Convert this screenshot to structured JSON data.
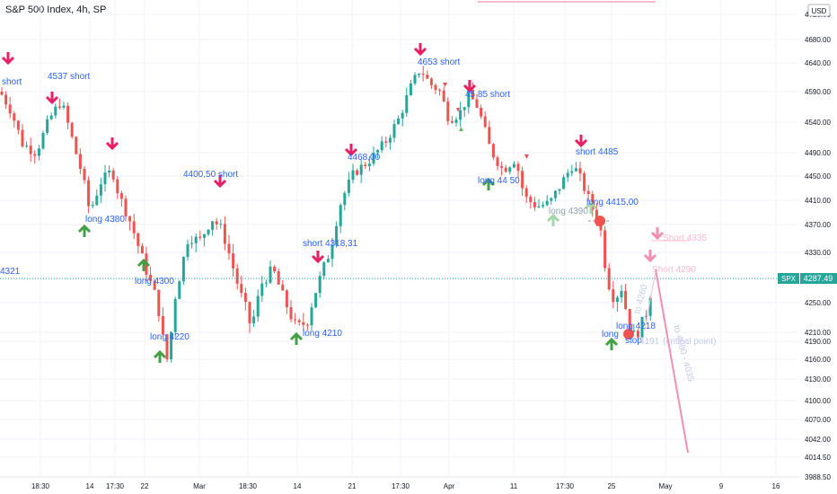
{
  "header": {
    "title": "S&P 500 Index, 4h, SP",
    "currency": "USD"
  },
  "price_badge": {
    "symbol": "SPX",
    "value": "4287.49"
  },
  "colors": {
    "up": "#26a69a",
    "down": "#ef5350",
    "text_blue": "#2962ff",
    "arrow_up": "#43a047",
    "arrow_down": "#e91e63",
    "faded": "#f8bbd0",
    "badge": "#26a69a"
  },
  "chart_data": {
    "type": "candlestick",
    "title": "S&P 500 Index, 4h, SP",
    "y_ticks": [
      "4720.00",
      "4680.00",
      "4640.00",
      "4590.00",
      "4540.00",
      "4490.00",
      "4450.00",
      "4410.00",
      "4370.00",
      "4330.00",
      "4290.00",
      "4250.00",
      "4210.00",
      "4190.00",
      "4160.00",
      "4130.00",
      "4100.00",
      "4070.00",
      "4042.00",
      "4014.50",
      "3988.50"
    ],
    "x_ticks": [
      "18:30",
      "14",
      "17:30",
      "22",
      "Mar",
      "18:30",
      "14",
      "21",
      "17:30",
      "Apr",
      "11",
      "17:30",
      "25",
      "May",
      "9",
      "16"
    ],
    "last_price": 4287.49,
    "annotations": [
      {
        "text": "short",
        "kind": "text"
      },
      {
        "text": "4537 short",
        "kind": "text"
      },
      {
        "text": "4653 short",
        "kind": "text"
      },
      {
        "text": "45 85  short",
        "kind": "text"
      },
      {
        "text": "4400,50 short",
        "kind": "text"
      },
      {
        "text": "4468,00",
        "kind": "text"
      },
      {
        "text": "short 4485",
        "kind": "text"
      },
      {
        "text": "long 4380",
        "kind": "text"
      },
      {
        "text": "long  44 50",
        "kind": "text"
      },
      {
        "text": "long  4415,00",
        "kind": "text"
      },
      {
        "text": "long 4390",
        "kind": "text"
      },
      {
        "text": "4321",
        "kind": "text"
      },
      {
        "text": "long  4300",
        "kind": "text"
      },
      {
        "text": "short  4318,31",
        "kind": "text"
      },
      {
        "text": "long  4220",
        "kind": "text"
      },
      {
        "text": "long  4210",
        "kind": "text"
      },
      {
        "text": "long  4218",
        "kind": "text"
      },
      {
        "text": "long",
        "kind": "text"
      },
      {
        "text": "stop",
        "kind": "text"
      },
      {
        "text": "4191",
        "kind": "text"
      },
      {
        "text": "(critical point)",
        "kind": "text"
      },
      {
        "text": "Short 4335",
        "kind": "text"
      },
      {
        "text": "Short 4290",
        "kind": "text"
      },
      {
        "text": "to 4080 - 4035",
        "kind": "text"
      },
      {
        "text": "to 4260",
        "kind": "text"
      }
    ]
  }
}
